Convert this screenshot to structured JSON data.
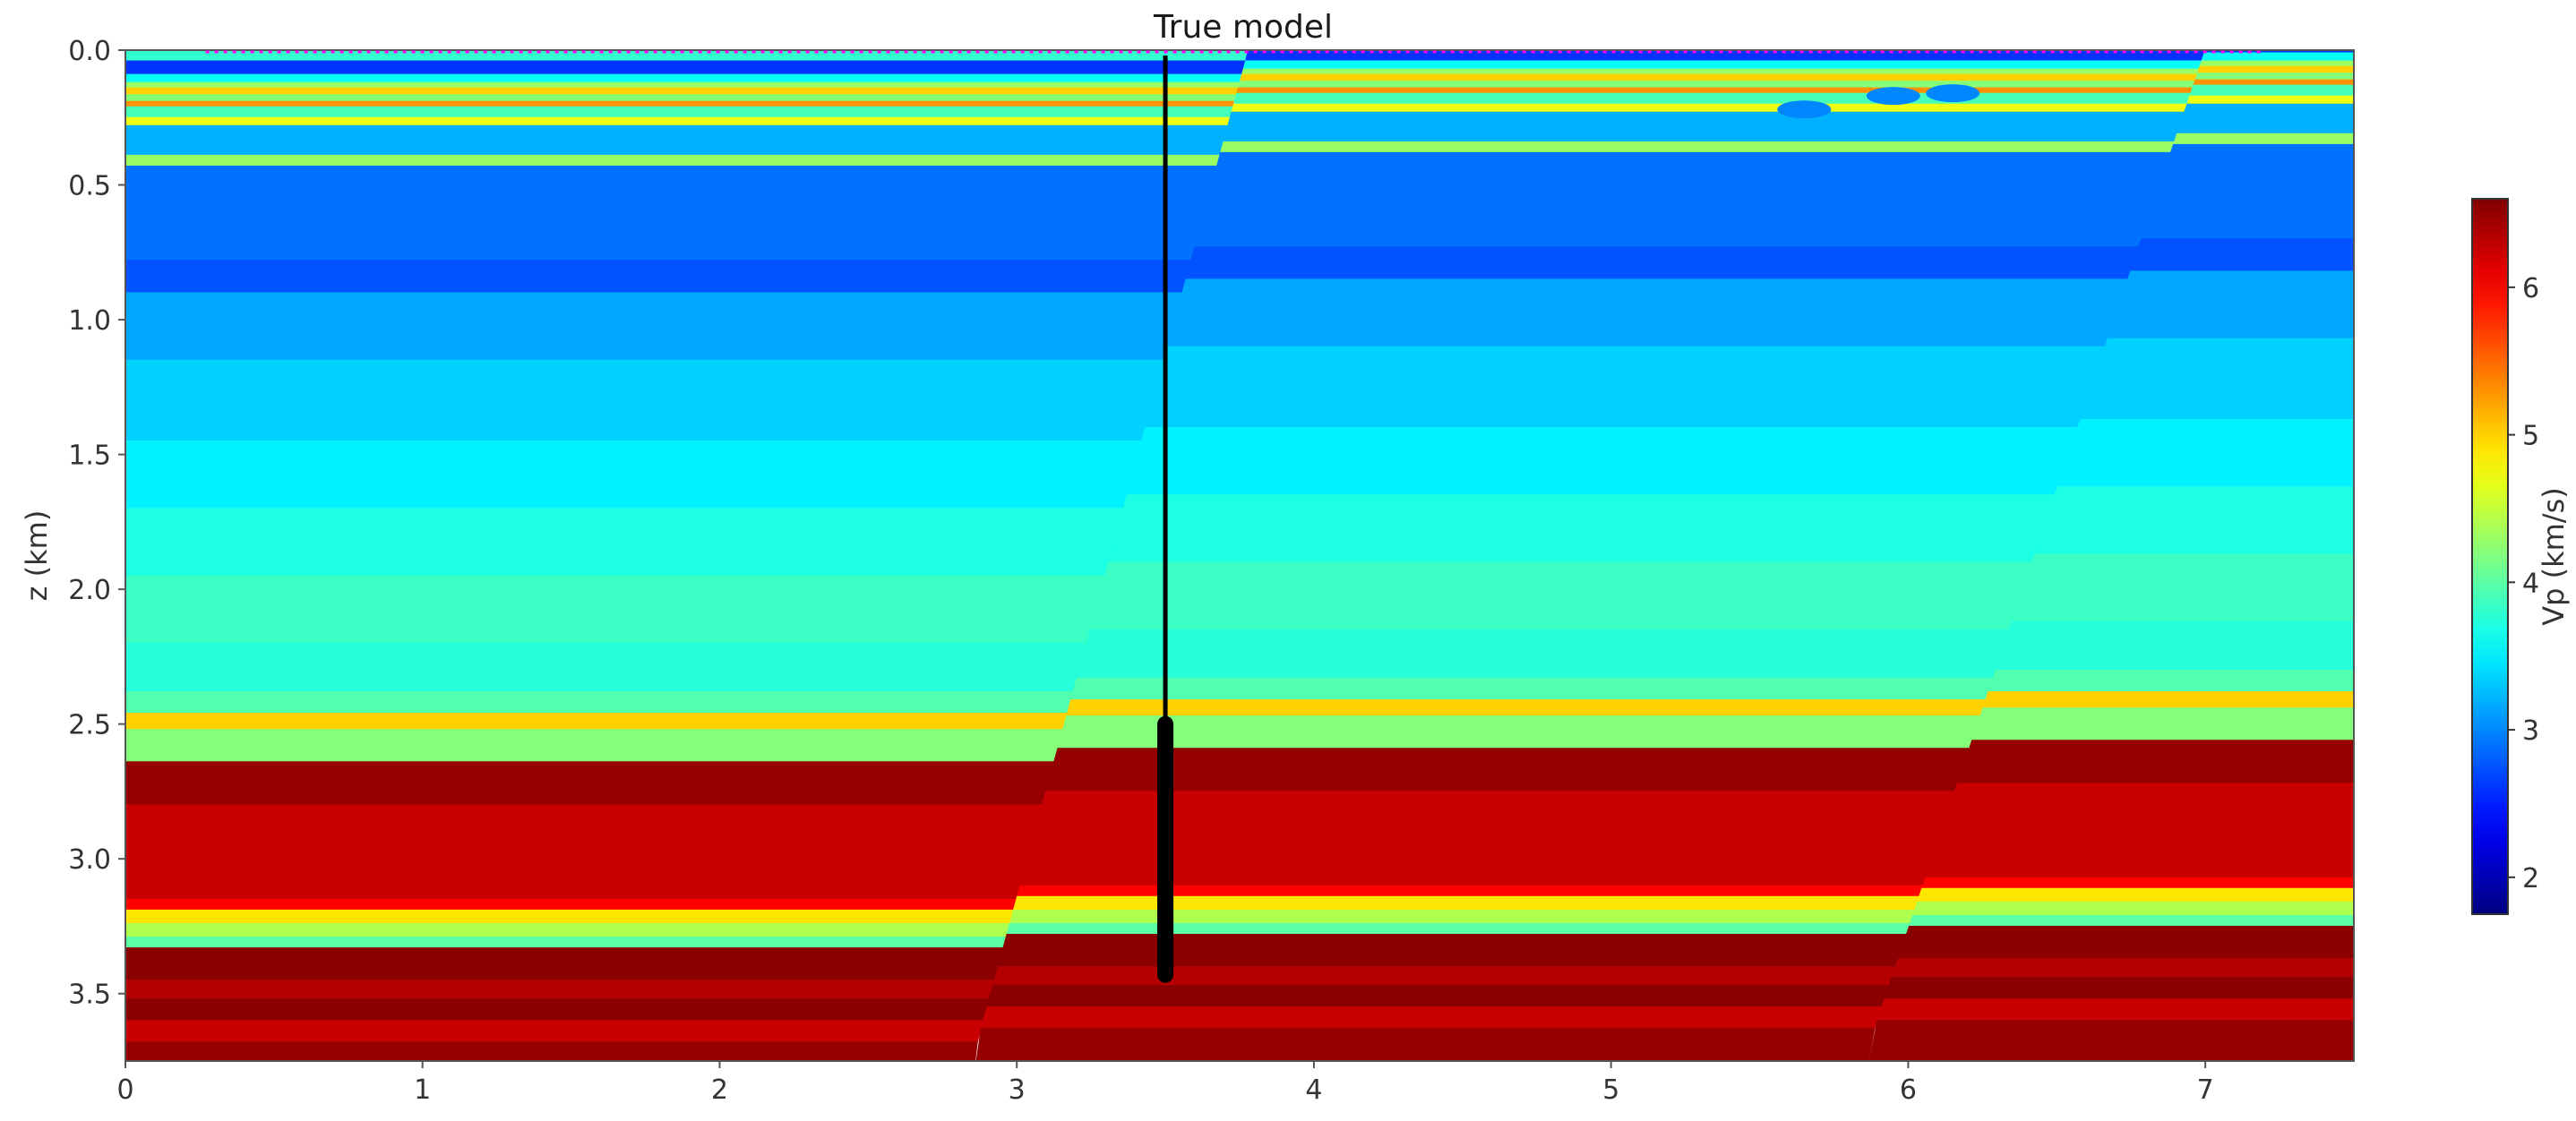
{
  "chart_data": {
    "type": "heatmap",
    "title": "True model",
    "xlabel": "",
    "ylabel": "z (km)",
    "xlim": [
      0,
      7.5
    ],
    "ylim": [
      3.75,
      0
    ],
    "x_ticks": [
      0,
      1,
      2,
      3,
      4,
      5,
      6,
      7
    ],
    "y_ticks": [
      "0.0",
      "0.5",
      "1.0",
      "1.5",
      "2.0",
      "2.5",
      "3.0",
      "3.5"
    ],
    "colorbar": {
      "label": "Vp (km/s)",
      "range": [
        1.75,
        6.6
      ],
      "ticks": [
        2,
        3,
        4,
        5,
        6
      ],
      "colormap": "jet"
    },
    "well": {
      "x": 3.5,
      "z_top": 0.02,
      "z_bottom": 3.43,
      "log_top": 2.5,
      "log_bottom": 3.43
    },
    "acquisition_surface_z": 0.0,
    "surface_markers_color": "#ff00ff",
    "faults": [
      {
        "z_top": 0.0,
        "x_top": 3.78,
        "x_bottom": 2.85
      },
      {
        "z_top": 0.0,
        "x_top": 7.0,
        "x_bottom": 5.85
      }
    ],
    "inclusions": [
      {
        "x": 5.65,
        "z": 0.22,
        "vp": 3.0
      },
      {
        "x": 5.95,
        "z": 0.17,
        "vp": 3.0
      },
      {
        "x": 6.15,
        "z": 0.16,
        "vp": 3.0
      }
    ],
    "layers": [
      {
        "z_top": 0.0,
        "vp": 3.8
      },
      {
        "z_top": 0.04,
        "vp": 2.6
      },
      {
        "z_top": 0.09,
        "vp": 3.6
      },
      {
        "z_top": 0.12,
        "vp": 4.3
      },
      {
        "z_top": 0.14,
        "vp": 5.0
      },
      {
        "z_top": 0.165,
        "vp": 4.2
      },
      {
        "z_top": 0.19,
        "vp": 5.3
      },
      {
        "z_top": 0.21,
        "vp": 3.9
      },
      {
        "z_top": 0.25,
        "vp": 4.7
      },
      {
        "z_top": 0.28,
        "vp": 3.2
      },
      {
        "z_top": 0.39,
        "vp": 4.3
      },
      {
        "z_top": 0.43,
        "vp": 2.9
      },
      {
        "z_top": 0.78,
        "vp": 2.75
      },
      {
        "z_top": 0.9,
        "vp": 3.15
      },
      {
        "z_top": 1.15,
        "vp": 3.35
      },
      {
        "z_top": 1.45,
        "vp": 3.5
      },
      {
        "z_top": 1.7,
        "vp": 3.7
      },
      {
        "z_top": 1.95,
        "vp": 3.85
      },
      {
        "z_top": 2.2,
        "vp": 3.75
      },
      {
        "z_top": 2.38,
        "vp": 3.95
      },
      {
        "z_top": 2.46,
        "vp": 5.0
      },
      {
        "z_top": 2.52,
        "vp": 4.2
      },
      {
        "z_top": 2.64,
        "vp": 6.5
      },
      {
        "z_top": 2.8,
        "vp": 6.25
      },
      {
        "z_top": 3.15,
        "vp": 6.0
      },
      {
        "z_top": 3.19,
        "vp": 4.9
      },
      {
        "z_top": 3.24,
        "vp": 4.4
      },
      {
        "z_top": 3.29,
        "vp": 4.0
      },
      {
        "z_top": 3.33,
        "vp": 6.55
      },
      {
        "z_top": 3.45,
        "vp": 6.35
      },
      {
        "z_top": 3.52,
        "vp": 6.55
      },
      {
        "z_top": 3.6,
        "vp": 6.25
      },
      {
        "z_top": 3.68,
        "vp": 6.5
      }
    ],
    "block_offsets_z": [
      0.0,
      -0.05,
      -0.08
    ]
  }
}
